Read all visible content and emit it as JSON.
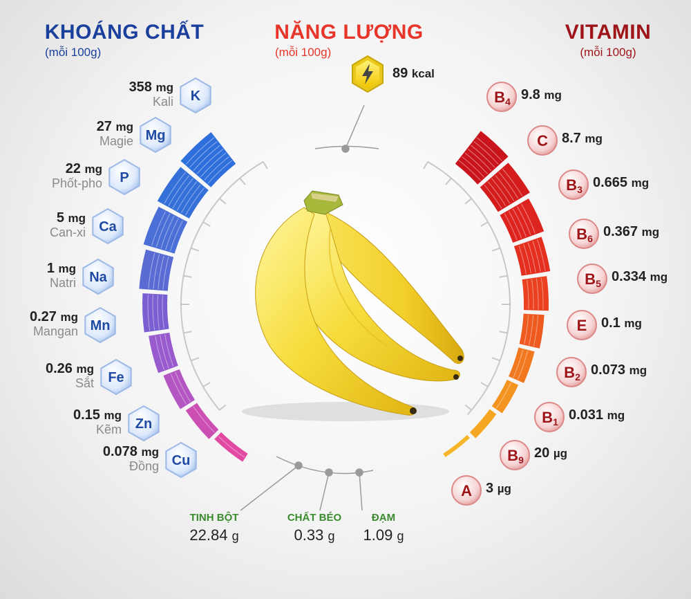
{
  "headers": {
    "minerals": {
      "title": "KHOÁNG CHẤT",
      "subtitle": "(mỗi 100g)",
      "color": "#1a3f9c"
    },
    "energy": {
      "title": "NĂNG LƯỢNG",
      "subtitle": "(mỗi 100g)",
      "color": "#e8352a"
    },
    "vitamins": {
      "title": "VITAMIN",
      "subtitle": "(mỗi 100g)",
      "color": "#9e1418"
    }
  },
  "energy": {
    "value": "89",
    "unit": "kcal",
    "icon": "lightning-icon"
  },
  "minerals": [
    {
      "symbol": "K",
      "value": "358",
      "unit": "mg",
      "name": "Kali"
    },
    {
      "symbol": "Mg",
      "value": "27",
      "unit": "mg",
      "name": "Magie"
    },
    {
      "symbol": "P",
      "value": "22",
      "unit": "mg",
      "name": "Phốt-pho"
    },
    {
      "symbol": "Ca",
      "value": "5",
      "unit": "mg",
      "name": "Can-xi"
    },
    {
      "symbol": "Na",
      "value": "1",
      "unit": "mg",
      "name": "Natri"
    },
    {
      "symbol": "Mn",
      "value": "0.27",
      "unit": "mg",
      "name": "Mangan"
    },
    {
      "symbol": "Fe",
      "value": "0.26",
      "unit": "mg",
      "name": "Sắt"
    },
    {
      "symbol": "Zn",
      "value": "0.15",
      "unit": "mg",
      "name": "Kẽm"
    },
    {
      "symbol": "Cu",
      "value": "0.078",
      "unit": "mg",
      "name": "Đồng"
    }
  ],
  "vitamins": [
    {
      "letter": "B",
      "sub": "4",
      "value": "9.8",
      "unit": "mg"
    },
    {
      "letter": "C",
      "sub": "",
      "value": "8.7",
      "unit": "mg"
    },
    {
      "letter": "B",
      "sub": "3",
      "value": "0.665",
      "unit": "mg"
    },
    {
      "letter": "B",
      "sub": "6",
      "value": "0.367",
      "unit": "mg"
    },
    {
      "letter": "B",
      "sub": "5",
      "value": "0.334",
      "unit": "mg"
    },
    {
      "letter": "E",
      "sub": "",
      "value": "0.1",
      "unit": "mg"
    },
    {
      "letter": "B",
      "sub": "2",
      "value": "0.073",
      "unit": "mg"
    },
    {
      "letter": "B",
      "sub": "1",
      "value": "0.031",
      "unit": "mg"
    },
    {
      "letter": "B",
      "sub": "9",
      "value": "20",
      "unit": "µg"
    },
    {
      "letter": "A",
      "sub": "",
      "value": "3",
      "unit": "µg"
    }
  ],
  "macros": [
    {
      "name": "TINH BỘT",
      "value": "22.84",
      "unit": "g"
    },
    {
      "name": "CHẤT BÉO",
      "value": "0.33",
      "unit": "g"
    },
    {
      "name": "ĐẠM",
      "value": "1.09",
      "unit": "g"
    }
  ],
  "colors": {
    "mineral_bars": [
      "#2f6fdc",
      "#3470d8",
      "#4a6fd6",
      "#5a6cd4",
      "#7a5fd2",
      "#985acd",
      "#b455c4",
      "#cc4fb4",
      "#e24aa2"
    ],
    "vitamin_bars": [
      "#c8141a",
      "#d41c1c",
      "#de241e",
      "#e42f1f",
      "#ea4120",
      "#ef5a20",
      "#f27820",
      "#f39320",
      "#f5a623",
      "#f7b52a"
    ],
    "ring": "#c8c8c8"
  }
}
